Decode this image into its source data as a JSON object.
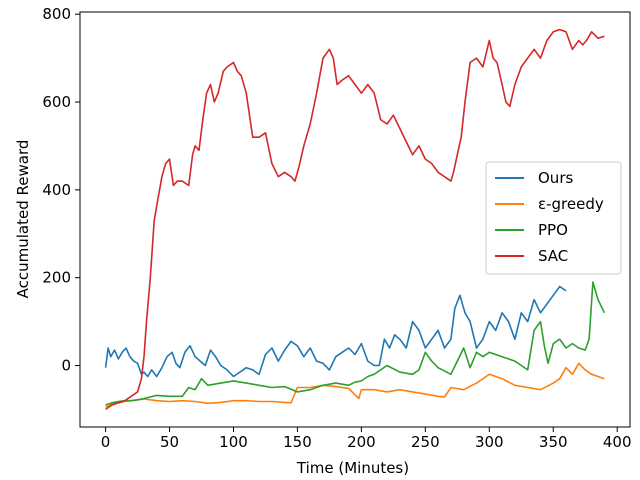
{
  "chart_data": {
    "type": "line",
    "xlabel": "Time (Minutes)",
    "ylabel": "Accumulated Reward",
    "xlim": [
      -20,
      410
    ],
    "ylim": [
      -140,
      805
    ],
    "xticks": [
      0,
      50,
      100,
      150,
      200,
      250,
      300,
      350,
      400
    ],
    "yticks": [
      0,
      200,
      400,
      600,
      800
    ],
    "grid": false,
    "legend_position": "center-right",
    "series": [
      {
        "name": "Ours",
        "color": "#1f77b4",
        "x": [
          0,
          2,
          4,
          7,
          10,
          13,
          16,
          19,
          22,
          25,
          28,
          30,
          33,
          36,
          40,
          44,
          48,
          52,
          55,
          58,
          62,
          66,
          70,
          74,
          78,
          82,
          86,
          90,
          95,
          100,
          105,
          110,
          115,
          120,
          125,
          130,
          135,
          140,
          145,
          150,
          155,
          160,
          165,
          170,
          175,
          180,
          185,
          190,
          195,
          200,
          205,
          210,
          214,
          218,
          222,
          226,
          230,
          235,
          240,
          245,
          250,
          255,
          260,
          265,
          270,
          273,
          277,
          281,
          285,
          290,
          295,
          300,
          305,
          310,
          315,
          320,
          325,
          330,
          335,
          340,
          345,
          350,
          355,
          360
        ],
        "y": [
          -5,
          40,
          20,
          35,
          15,
          30,
          40,
          20,
          10,
          5,
          -20,
          -15,
          -25,
          -10,
          -25,
          -5,
          20,
          30,
          5,
          -5,
          30,
          45,
          20,
          10,
          0,
          35,
          20,
          0,
          -10,
          -25,
          -15,
          -5,
          -10,
          -20,
          25,
          40,
          10,
          35,
          55,
          45,
          20,
          40,
          10,
          5,
          -10,
          20,
          30,
          40,
          25,
          50,
          10,
          0,
          0,
          60,
          40,
          70,
          60,
          40,
          100,
          80,
          40,
          60,
          80,
          40,
          60,
          130,
          160,
          120,
          100,
          40,
          60,
          100,
          80,
          120,
          100,
          60,
          120,
          100,
          150,
          120,
          140,
          160,
          180,
          170
        ]
      },
      {
        "name": "ε-greedy",
        "color": "#ff7f0e",
        "x": [
          0,
          5,
          10,
          15,
          20,
          25,
          30,
          40,
          50,
          60,
          70,
          80,
          90,
          100,
          110,
          120,
          130,
          140,
          145,
          150,
          160,
          170,
          180,
          190,
          198,
          200,
          210,
          220,
          230,
          240,
          250,
          260,
          265,
          270,
          280,
          290,
          300,
          310,
          320,
          330,
          340,
          350,
          355,
          360,
          365,
          370,
          375,
          380,
          385,
          390
        ],
        "y": [
          -95,
          -88,
          -85,
          -82,
          -80,
          -78,
          -76,
          -80,
          -82,
          -80,
          -82,
          -86,
          -84,
          -80,
          -80,
          -82,
          -82,
          -84,
          -85,
          -50,
          -50,
          -45,
          -48,
          -52,
          -75,
          -55,
          -55,
          -60,
          -55,
          -60,
          -65,
          -70,
          -72,
          -50,
          -55,
          -40,
          -20,
          -30,
          -45,
          -50,
          -55,
          -40,
          -30,
          -5,
          -20,
          5,
          -10,
          -20,
          -25,
          -30
        ]
      },
      {
        "name": "PPO",
        "color": "#2ca02c",
        "x": [
          0,
          5,
          10,
          15,
          20,
          25,
          30,
          40,
          50,
          60,
          65,
          70,
          75,
          80,
          90,
          100,
          110,
          120,
          130,
          140,
          150,
          160,
          170,
          180,
          190,
          195,
          200,
          205,
          210,
          215,
          220,
          230,
          240,
          245,
          250,
          255,
          260,
          270,
          275,
          280,
          285,
          290,
          295,
          300,
          310,
          320,
          330,
          335,
          340,
          343,
          346,
          350,
          355,
          360,
          365,
          370,
          375,
          378,
          381,
          385,
          390
        ],
        "y": [
          -90,
          -85,
          -82,
          -80,
          -80,
          -78,
          -75,
          -68,
          -70,
          -70,
          -50,
          -55,
          -30,
          -45,
          -40,
          -35,
          -40,
          -45,
          -50,
          -48,
          -60,
          -55,
          -45,
          -40,
          -45,
          -38,
          -35,
          -25,
          -20,
          -10,
          0,
          -15,
          -20,
          -10,
          30,
          10,
          -5,
          -20,
          10,
          40,
          -5,
          30,
          20,
          30,
          20,
          10,
          -10,
          80,
          100,
          45,
          5,
          50,
          60,
          40,
          50,
          40,
          35,
          60,
          190,
          150,
          120
        ]
      },
      {
        "name": "SAC",
        "color": "#d62728",
        "x": [
          0,
          5,
          10,
          15,
          20,
          25,
          28,
          30,
          32,
          35,
          38,
          41,
          44,
          47,
          50,
          53,
          56,
          60,
          65,
          68,
          70,
          73,
          76,
          79,
          82,
          85,
          88,
          92,
          95,
          100,
          103,
          106,
          110,
          115,
          120,
          125,
          130,
          135,
          140,
          145,
          148,
          151,
          155,
          160,
          165,
          170,
          175,
          178,
          181,
          185,
          190,
          195,
          200,
          205,
          210,
          215,
          220,
          225,
          230,
          235,
          240,
          245,
          250,
          255,
          260,
          265,
          270,
          272,
          275,
          278,
          281,
          285,
          290,
          295,
          300,
          303,
          306,
          310,
          313,
          316,
          320,
          325,
          330,
          335,
          340,
          345,
          350,
          355,
          360,
          365,
          370,
          373,
          376,
          380,
          385,
          390
        ],
        "y": [
          -100,
          -90,
          -85,
          -80,
          -70,
          -60,
          -30,
          20,
          100,
          200,
          330,
          380,
          430,
          460,
          470,
          410,
          420,
          420,
          410,
          480,
          500,
          490,
          560,
          620,
          640,
          600,
          620,
          670,
          680,
          690,
          670,
          660,
          620,
          520,
          520,
          530,
          460,
          430,
          440,
          430,
          420,
          450,
          500,
          550,
          620,
          700,
          720,
          700,
          640,
          650,
          660,
          640,
          620,
          640,
          620,
          560,
          550,
          570,
          540,
          510,
          480,
          500,
          470,
          460,
          440,
          430,
          420,
          440,
          480,
          520,
          600,
          690,
          700,
          680,
          740,
          700,
          690,
          640,
          600,
          590,
          640,
          680,
          700,
          720,
          700,
          740,
          760,
          765,
          760,
          720,
          740,
          730,
          740,
          760,
          745,
          750
        ]
      }
    ]
  }
}
